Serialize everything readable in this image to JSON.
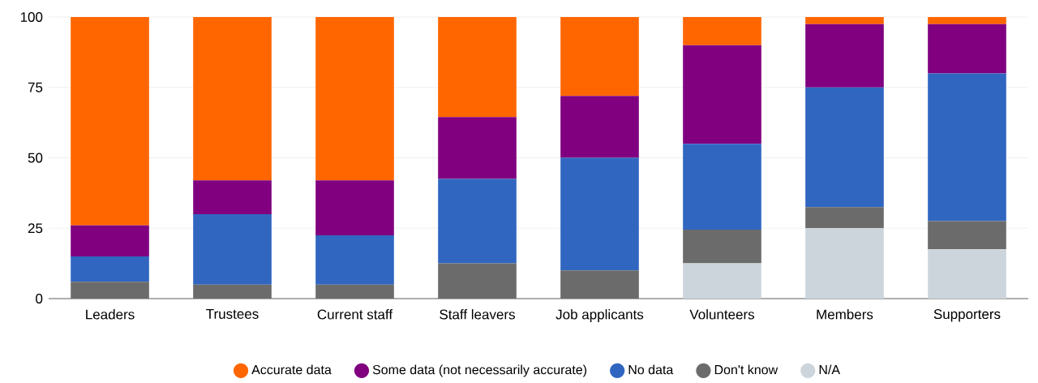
{
  "chart_data": {
    "type": "bar",
    "stacked": true,
    "categories": [
      "Leaders",
      "Trustees",
      "Current staff",
      "Staff leavers",
      "Job applicants",
      "Volunteers",
      "Members",
      "Supporters"
    ],
    "series": [
      {
        "name": "N/A",
        "color": "#cdd5dc",
        "values": [
          0,
          0,
          0,
          0,
          0,
          12.5,
          25,
          17.5
        ]
      },
      {
        "name": "Don't know",
        "color": "#6b6b6b",
        "values": [
          6,
          5,
          5,
          12.5,
          10,
          12,
          7.5,
          10
        ]
      },
      {
        "name": "No data",
        "color": "#3066c0",
        "values": [
          9,
          25,
          17.5,
          30,
          40,
          30.5,
          42.5,
          52.5
        ]
      },
      {
        "name": "Some data (not necessarily accurate)",
        "color": "#800080",
        "values": [
          11,
          12,
          19.5,
          22,
          22,
          35,
          22.5,
          17.5
        ]
      },
      {
        "name": "Accurate data",
        "color": "#ff6600",
        "values": [
          74,
          58,
          58,
          35.5,
          28,
          10,
          2.5,
          2.5
        ]
      }
    ],
    "ylim": [
      0,
      100
    ],
    "yticks": [
      0,
      25,
      50,
      75,
      100
    ],
    "grid": "y",
    "legend": "bottom"
  }
}
